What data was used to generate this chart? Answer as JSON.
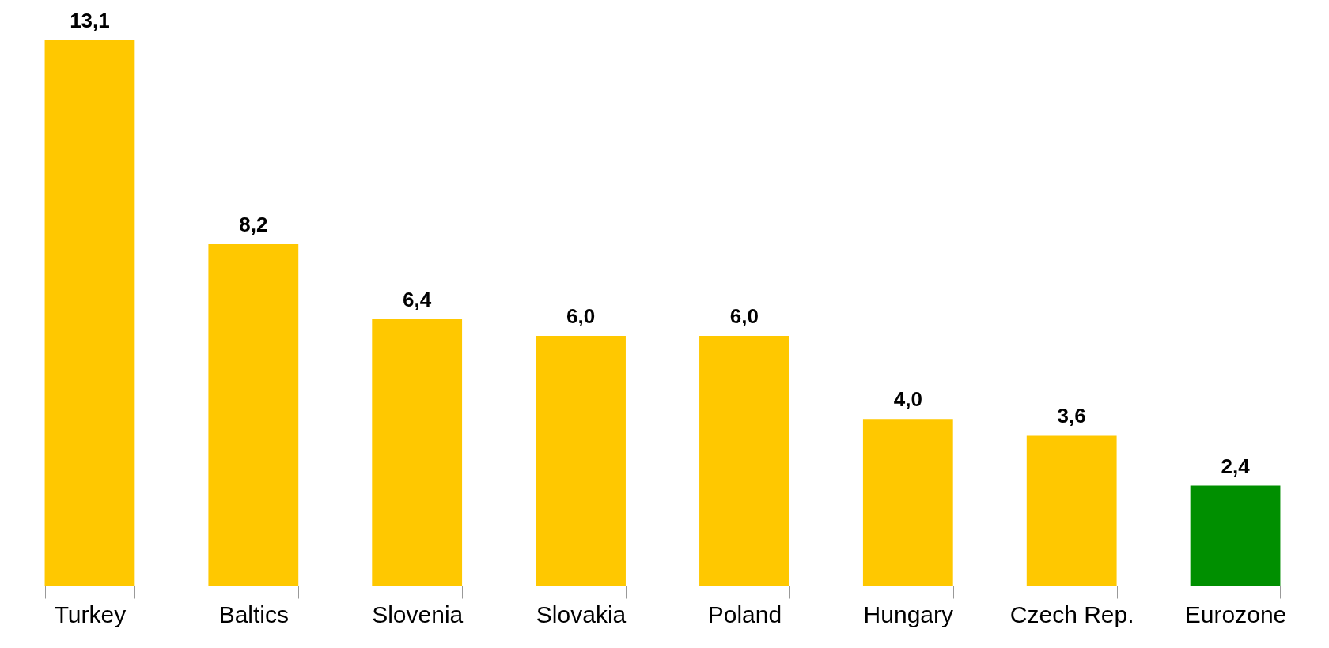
{
  "chart_data": {
    "type": "bar",
    "categories": [
      "Turkey",
      "Baltics",
      "Slovenia",
      "Slovakia",
      "Poland",
      "Hungary",
      "Czech Rep.",
      "Eurozone"
    ],
    "values": [
      13.1,
      8.2,
      6.4,
      6.0,
      6.0,
      4.0,
      3.6,
      2.4
    ],
    "value_labels": [
      "13,1",
      "8,2",
      "6,4",
      "6,0",
      "6,0",
      "4,0",
      "3,6",
      "2,4"
    ],
    "colors": [
      "#ffc800",
      "#ffc800",
      "#ffc800",
      "#ffc800",
      "#ffc800",
      "#ffc800",
      "#ffc800",
      "#008f00"
    ]
  }
}
